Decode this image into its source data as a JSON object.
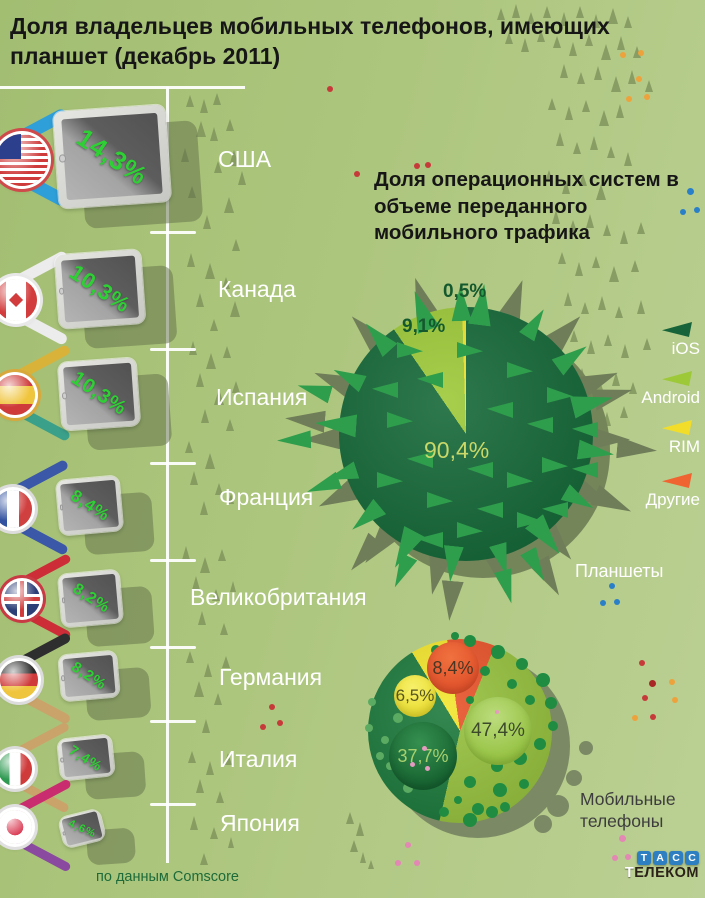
{
  "header": {
    "title": "Доля владельцев мобильных телефонов, имеющих планшет (декабрь 2011)"
  },
  "os_section": {
    "title": "Доля операционных систем в объеме переданного мобильного трафика"
  },
  "legend": [
    {
      "label": "iOS",
      "color": "#17643a"
    },
    {
      "label": "Android",
      "color": "#9dc938"
    },
    {
      "label": "RIM",
      "color": "#f2dd2b"
    },
    {
      "label": "Другие",
      "color": "#ef6430"
    }
  ],
  "source_note": "по данным Comscore",
  "logo": {
    "tass_letters": [
      "Т",
      "А",
      "С",
      "С"
    ],
    "telecom_first": "Т",
    "telecom_rest": "ЕЛЕКОМ"
  },
  "palette": {
    "background_green": "#adc67e",
    "percent_text_green": "#2ed134",
    "timeline_white": "#ffffff"
  },
  "chart_data": [
    {
      "type": "pictogram-bar",
      "title": "Доля владельцев мобильных телефонов, имеющих планшет (декабрь 2011)",
      "unit": "%",
      "categories": [
        "США",
        "Канада",
        "Испания",
        "Франция",
        "Великобритания",
        "Германия",
        "Италия",
        "Япония"
      ],
      "values": [
        14.3,
        10.3,
        10.3,
        8.4,
        8.2,
        8.2,
        7.4,
        4.6
      ],
      "value_labels": [
        "14,3%",
        "10,3%",
        "10,3%",
        "8,4%",
        "8,2%",
        "8,2%",
        "7,4%",
        "4,6%"
      ]
    },
    {
      "type": "pie",
      "title": "Доля операционных систем в объеме переданного мобильного трафика",
      "segment": "Планшеты",
      "labels": [
        "iOS",
        "Android",
        "RIM"
      ],
      "values": [
        90.4,
        9.1,
        0.5
      ],
      "value_labels": [
        "90,4%",
        "9,1%",
        "0,5%"
      ],
      "colors": [
        "#17693a",
        "#9dc938",
        "#efe32b"
      ],
      "legend_position": "right"
    },
    {
      "type": "pie",
      "segment": "Мобильные телефоны",
      "labels": [
        "iOS",
        "Android",
        "RIM",
        "Другие"
      ],
      "values": [
        37.7,
        47.4,
        6.5,
        8.4
      ],
      "value_labels": [
        "37,7%",
        "47,4%",
        "6,5%",
        "8,4%"
      ],
      "colors": [
        "#1e7a3d",
        "#97c23f",
        "#f3e52e",
        "#e8542b"
      ]
    }
  ]
}
